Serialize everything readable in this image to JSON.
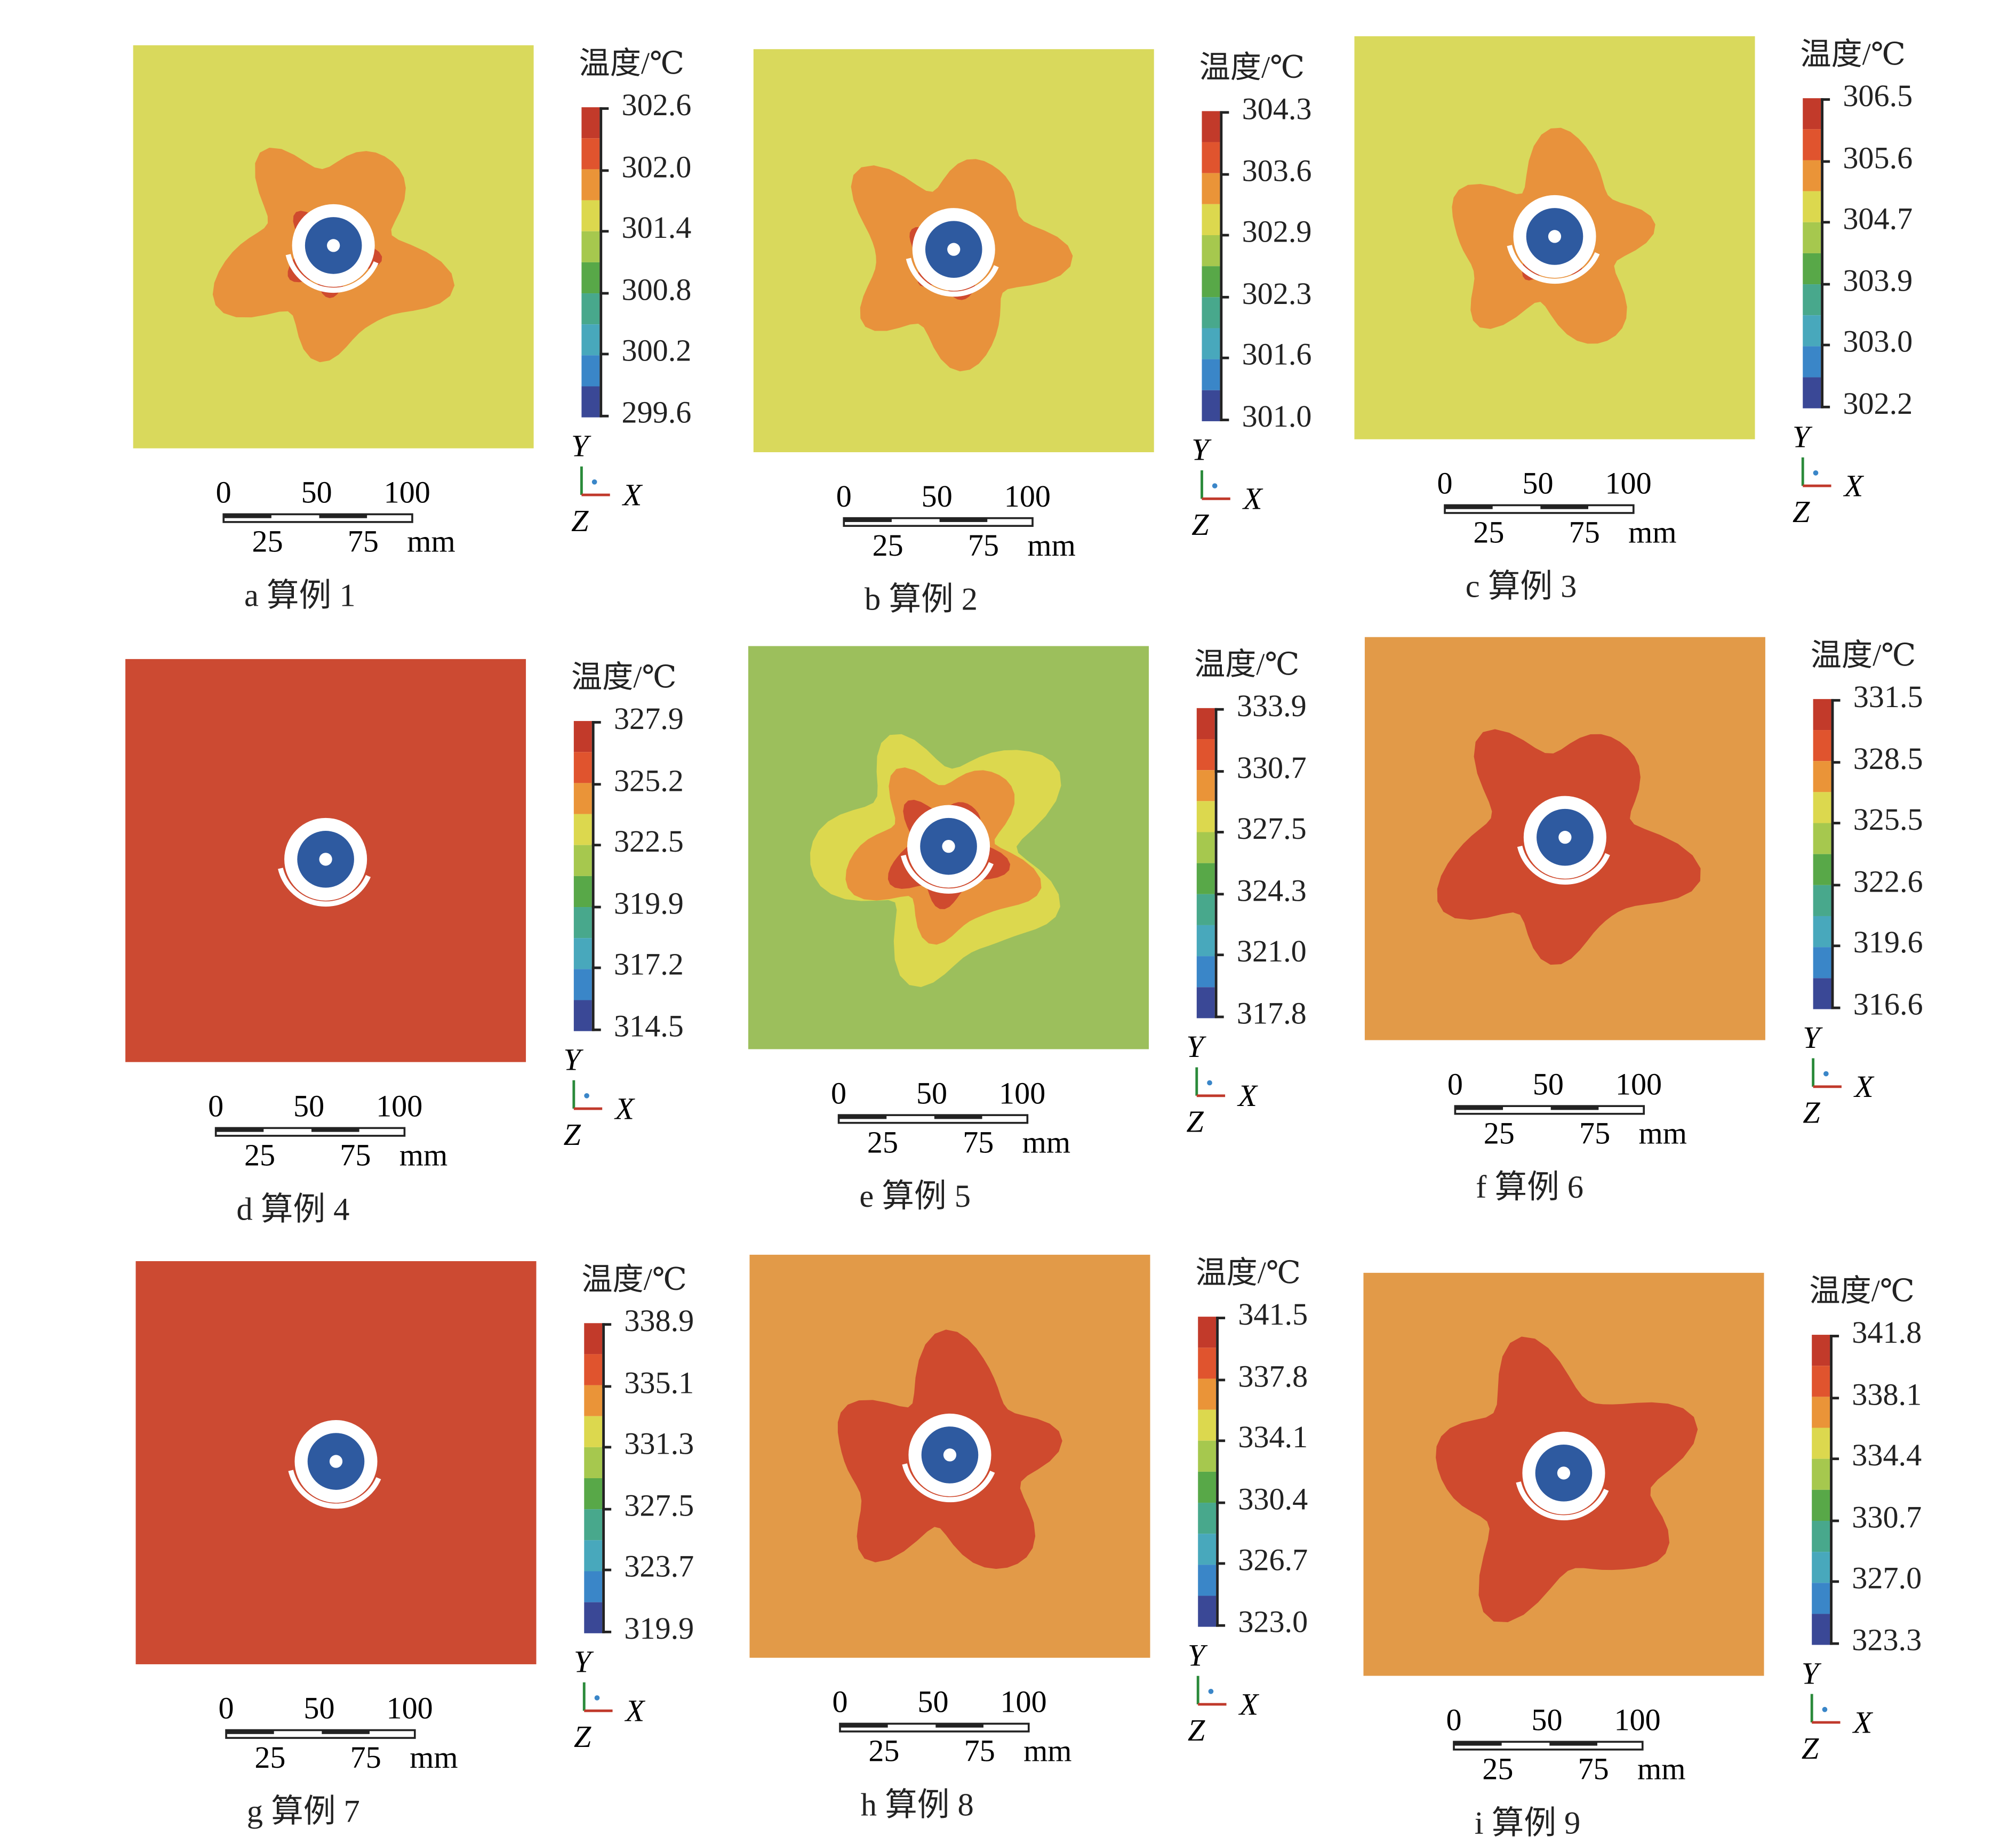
{
  "legend_title": "温度/℃",
  "scale_bar": {
    "top_labels": [
      "0",
      "50",
      "100"
    ],
    "bottom_labels": [
      "25",
      "75"
    ],
    "unit": "mm"
  },
  "axes": {
    "y": "Y",
    "x": "X",
    "z": "Z"
  },
  "colorbar_colors": [
    "#c23a2a",
    "#e0542e",
    "#ea9438",
    "#dcd84e",
    "#a6c84e",
    "#58a848",
    "#48a88c",
    "#48a8bc",
    "#3a86c8",
    "#3a4896"
  ],
  "panels": [
    {
      "label": "a",
      "caption": "算例 1",
      "ticks": [
        "302.6",
        "302.0",
        "301.4",
        "300.8",
        "300.2",
        "299.6"
      ],
      "background": "#d9d95c",
      "layers": [
        "#e8923c",
        "#cf4a2e"
      ]
    },
    {
      "label": "b",
      "caption": "算例 2",
      "ticks": [
        "304.3",
        "303.6",
        "302.9",
        "302.3",
        "301.6",
        "301.0"
      ],
      "background": "#d9d95c",
      "layers": [
        "#e8923c",
        "#cf4a2e"
      ]
    },
    {
      "label": "c",
      "caption": "算例 3",
      "ticks": [
        "306.5",
        "305.6",
        "304.7",
        "303.9",
        "303.0",
        "302.2"
      ],
      "background": "#d9d95c",
      "layers": [
        "#e8923c",
        "#cf4a2e"
      ]
    },
    {
      "label": "d",
      "caption": "算例 4",
      "ticks": [
        "327.9",
        "325.2",
        "322.5",
        "319.9",
        "317.2",
        "314.5"
      ],
      "background": "#cc4a32",
      "layers": []
    },
    {
      "label": "e",
      "caption": "算例 5",
      "ticks": [
        "333.9",
        "330.7",
        "327.5",
        "324.3",
        "321.0",
        "317.8"
      ],
      "background": "#9cbf5c",
      "layers": [
        "#dcd84e",
        "#e8923c",
        "#cf4a2e"
      ]
    },
    {
      "label": "f",
      "caption": "算例 6",
      "ticks": [
        "331.5",
        "328.5",
        "325.5",
        "322.6",
        "319.6",
        "316.6"
      ],
      "background": "#e29a48",
      "layers": [
        "#cf4a2e"
      ]
    },
    {
      "label": "g",
      "caption": "算例 7",
      "ticks": [
        "338.9",
        "335.1",
        "331.3",
        "327.5",
        "323.7",
        "319.9"
      ],
      "background": "#cc4a32",
      "layers": []
    },
    {
      "label": "h",
      "caption": "算例 8",
      "ticks": [
        "341.5",
        "337.8",
        "334.1",
        "330.4",
        "326.7",
        "323.0"
      ],
      "background": "#e29a48",
      "layers": [
        "#cf4a2e"
      ]
    },
    {
      "label": "i",
      "caption": "算例 9",
      "ticks": [
        "341.8",
        "338.1",
        "334.4",
        "330.7",
        "327.0",
        "323.3"
      ],
      "background": "#e29a48",
      "layers": [
        "#cf4a2e"
      ]
    }
  ]
}
